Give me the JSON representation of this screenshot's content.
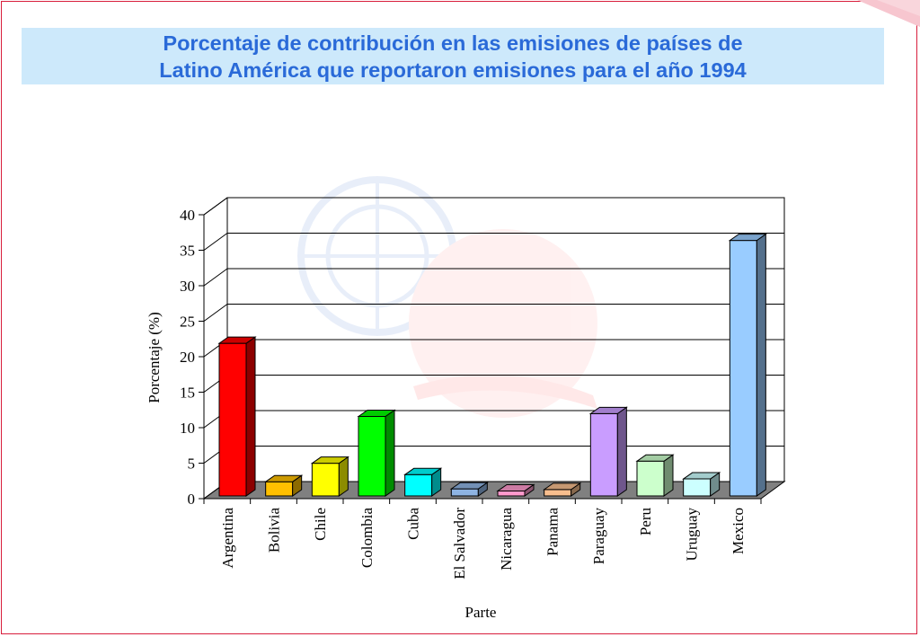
{
  "title": {
    "line1": "Porcentaje de contribución en las emisiones de países de",
    "line2": "Latino América que reportaron emisiones para el año 1994"
  },
  "colors": {
    "title_text": "#2a6ad8",
    "title_band": "#cde9fb",
    "frame": "#d81e3c"
  },
  "chart_data": {
    "type": "bar",
    "style": "3d-column",
    "ylabel": "Porcentaje (%)",
    "xlabel": "Parte",
    "ylim": [
      0,
      40
    ],
    "yticks": [
      0,
      5,
      10,
      15,
      20,
      25,
      30,
      35,
      40
    ],
    "grid": true,
    "legend": "none",
    "categories": [
      "Argentina",
      "Bolivia",
      "Chile",
      "Colombia",
      "Cuba",
      "El Salvador",
      "Nicaragua",
      "Panama",
      "Paraguay",
      "Peru",
      "Uruguay",
      "Mexico"
    ],
    "values": [
      21.5,
      2.0,
      4.6,
      11.2,
      3.0,
      1.0,
      0.7,
      0.9,
      11.6,
      4.9,
      2.4,
      36.0
    ],
    "bar_colors": [
      "#ff0000",
      "#ffc000",
      "#ffff00",
      "#00ff00",
      "#00ffff",
      "#8eb4e3",
      "#ff99cc",
      "#f8be8e",
      "#c99dff",
      "#ccffcc",
      "#ccffff",
      "#99ccff"
    ]
  }
}
